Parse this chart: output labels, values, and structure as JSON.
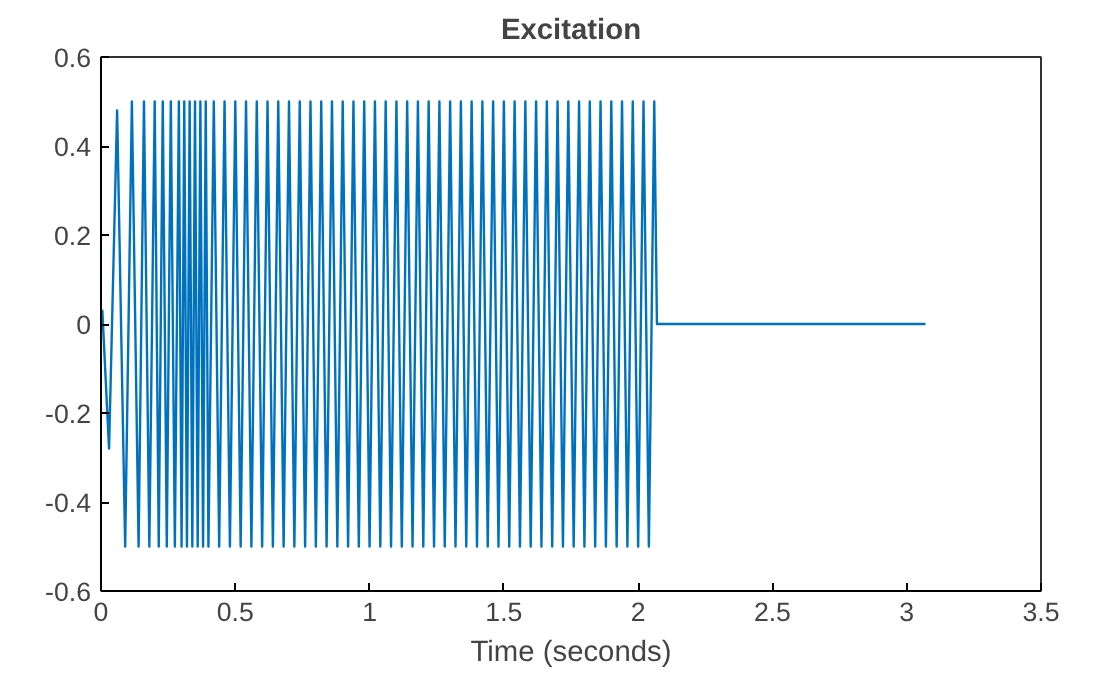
{
  "chart_data": {
    "type": "line",
    "title": "Excitation",
    "xlabel": "Time (seconds)",
    "x": [
      0,
      0.005,
      0.03,
      0.06,
      0.09,
      0.115,
      0.14,
      0.16,
      0.18,
      0.2,
      0.215,
      0.23,
      0.245,
      0.26,
      0.275,
      0.29,
      0.3,
      0.31,
      0.32,
      0.33,
      0.34,
      0.35,
      0.36,
      0.37,
      0.38,
      0.39,
      0.4,
      0.42,
      0.44,
      0.46,
      0.48,
      0.5,
      0.52,
      0.54,
      0.56,
      0.58,
      0.6,
      0.62,
      0.64,
      0.66,
      0.68,
      0.7,
      0.72,
      0.74,
      0.76,
      0.78,
      0.8,
      0.82,
      0.84,
      0.86,
      0.88,
      0.9,
      0.92,
      0.94,
      0.96,
      0.98,
      1.0,
      1.02,
      1.04,
      1.06,
      1.08,
      1.1,
      1.12,
      1.14,
      1.16,
      1.18,
      1.2,
      1.22,
      1.24,
      1.26,
      1.28,
      1.3,
      1.32,
      1.34,
      1.36,
      1.38,
      1.4,
      1.42,
      1.44,
      1.46,
      1.48,
      1.5,
      1.52,
      1.54,
      1.56,
      1.58,
      1.6,
      1.62,
      1.64,
      1.66,
      1.68,
      1.7,
      1.72,
      1.74,
      1.76,
      1.78,
      1.8,
      1.82,
      1.84,
      1.86,
      1.88,
      1.9,
      1.92,
      1.94,
      1.96,
      1.98,
      2.0,
      2.02,
      2.04,
      2.06,
      2.07,
      3.07
    ],
    "series": [
      {
        "color": "#0072bd",
        "values": [
          0,
          0.03,
          -0.28,
          0.48,
          -0.5,
          0.5,
          -0.5,
          0.5,
          -0.5,
          0.5,
          -0.5,
          0.5,
          -0.5,
          0.5,
          -0.5,
          0.5,
          -0.5,
          0.5,
          -0.5,
          0.5,
          -0.5,
          0.5,
          -0.5,
          0.5,
          -0.5,
          0.5,
          -0.5,
          0.5,
          -0.5,
          0.5,
          -0.5,
          0.5,
          -0.5,
          0.5,
          -0.5,
          0.5,
          -0.5,
          0.5,
          -0.5,
          0.5,
          -0.5,
          0.5,
          -0.5,
          0.5,
          -0.5,
          0.5,
          -0.5,
          0.5,
          -0.5,
          0.5,
          -0.5,
          0.5,
          -0.5,
          0.5,
          -0.5,
          0.5,
          -0.5,
          0.5,
          -0.5,
          0.5,
          -0.5,
          0.5,
          -0.5,
          0.5,
          -0.5,
          0.5,
          -0.5,
          0.5,
          -0.5,
          0.5,
          -0.5,
          0.5,
          -0.5,
          0.5,
          -0.5,
          0.5,
          -0.5,
          0.5,
          -0.5,
          0.5,
          -0.5,
          0.5,
          -0.5,
          0.5,
          -0.5,
          0.5,
          -0.5,
          0.5,
          -0.5,
          0.5,
          -0.5,
          0.5,
          -0.5,
          0.5,
          -0.5,
          0.5,
          -0.5,
          0.5,
          -0.5,
          0.5,
          -0.5,
          0.5,
          -0.5,
          0.5,
          -0.5,
          0.5,
          -0.5,
          0.5,
          -0.5,
          0.5,
          0,
          0
        ]
      }
    ],
    "xlim": [
      0,
      3.5
    ],
    "xticks": [
      0,
      0.5,
      1,
      1.5,
      2,
      2.5,
      3,
      3.5
    ],
    "ylim": [
      -0.6,
      0.6
    ],
    "yticks": [
      -0.6,
      -0.4,
      -0.2,
      0,
      0.2,
      0.4,
      0.6
    ],
    "grid": false
  }
}
